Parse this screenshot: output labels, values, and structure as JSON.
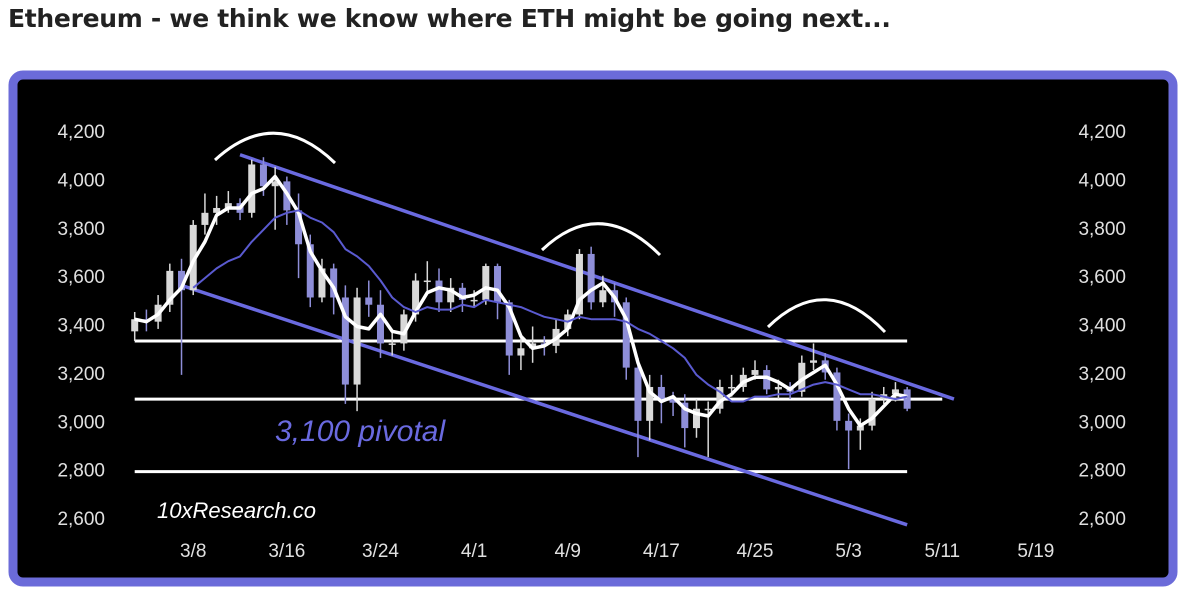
{
  "chart_data": {
    "type": "candlestick",
    "title": "Ethereum - we think we know where ETH might be going next...",
    "annotations": [
      "3,100 pivotal",
      "10xResearch.co"
    ],
    "x": [
      "3/3",
      "3/4",
      "3/5",
      "3/6",
      "3/7",
      "3/8",
      "3/9",
      "3/10",
      "3/11",
      "3/12",
      "3/13",
      "3/14",
      "3/15",
      "3/16",
      "3/17",
      "3/18",
      "3/19",
      "3/20",
      "3/21",
      "3/22",
      "3/23",
      "3/24",
      "3/25",
      "3/26",
      "3/27",
      "3/28",
      "3/29",
      "3/30",
      "3/31",
      "4/1",
      "4/2",
      "4/3",
      "4/4",
      "4/5",
      "4/6",
      "4/7",
      "4/8",
      "4/9",
      "4/10",
      "4/11",
      "4/12",
      "4/13",
      "4/14",
      "4/15",
      "4/16",
      "4/17",
      "4/18",
      "4/19",
      "4/20",
      "4/21",
      "4/22",
      "4/23",
      "4/24",
      "4/25",
      "4/26",
      "4/27",
      "4/28",
      "4/29",
      "4/30",
      "5/1",
      "5/2",
      "5/3",
      "5/4",
      "5/5",
      "5/6",
      "5/7",
      "5/8"
    ],
    "open": [
      3380,
      3430,
      3420,
      3490,
      3630,
      3550,
      3820,
      3870,
      3890,
      3910,
      3870,
      4070,
      3980,
      4000,
      3880,
      3740,
      3520,
      3640,
      3520,
      3160,
      3520,
      3490,
      3330,
      3330,
      3450,
      3590,
      3590,
      3500,
      3560,
      3510,
      3510,
      3650,
      3500,
      3280,
      3310,
      3330,
      3320,
      3390,
      3450,
      3700,
      3500,
      3550,
      3500,
      3230,
      3010,
      3150,
      3100,
      3085,
      2980,
      3060,
      3060,
      3150,
      3150,
      3200,
      3220,
      3140,
      3150,
      3130,
      3250,
      3260,
      3210,
      3010,
      2970,
      2990,
      3100,
      3120,
      3140
    ],
    "high": [
      3460,
      3470,
      3530,
      3660,
      3680,
      3840,
      3950,
      3940,
      3960,
      3930,
      4090,
      4100,
      4060,
      4020,
      3950,
      3780,
      3680,
      3660,
      3570,
      3560,
      3590,
      3550,
      3380,
      3470,
      3620,
      3670,
      3640,
      3600,
      3580,
      3550,
      3660,
      3660,
      3510,
      3360,
      3400,
      3360,
      3430,
      3470,
      3720,
      3730,
      3610,
      3580,
      3520,
      3270,
      3200,
      3200,
      3130,
      3120,
      3100,
      3090,
      3180,
      3200,
      3230,
      3260,
      3240,
      3180,
      3170,
      3280,
      3330,
      3290,
      3230,
      3040,
      3020,
      3130,
      3150,
      3170,
      3150
    ],
    "low": [
      3340,
      3380,
      3390,
      3460,
      3200,
      3530,
      3780,
      3820,
      3870,
      3840,
      3850,
      3940,
      3800,
      3820,
      3600,
      3480,
      3500,
      3450,
      3080,
      3050,
      3440,
      3270,
      3280,
      3300,
      3420,
      3540,
      3460,
      3460,
      3460,
      3480,
      3490,
      3430,
      3200,
      3220,
      3250,
      3280,
      3290,
      3360,
      3430,
      3470,
      3480,
      3440,
      3180,
      2860,
      2930,
      3000,
      3030,
      2900,
      2940,
      2860,
      3040,
      3110,
      3130,
      3180,
      3120,
      3100,
      3100,
      3110,
      3220,
      3180,
      2970,
      2810,
      2890,
      2970,
      3080,
      3090,
      3050
    ],
    "close": [
      3430,
      3420,
      3490,
      3630,
      3550,
      3820,
      3870,
      3890,
      3910,
      3870,
      4070,
      3980,
      4000,
      3880,
      3740,
      3520,
      3640,
      3520,
      3160,
      3520,
      3490,
      3330,
      3330,
      3450,
      3590,
      3590,
      3500,
      3560,
      3510,
      3510,
      3650,
      3500,
      3280,
      3310,
      3330,
      3320,
      3390,
      3450,
      3700,
      3500,
      3550,
      3500,
      3230,
      3010,
      3150,
      3100,
      3085,
      2980,
      3060,
      3060,
      3150,
      3150,
      3200,
      3220,
      3140,
      3150,
      3130,
      3250,
      3260,
      3210,
      3010,
      2970,
      2990,
      3100,
      3120,
      3140,
      3060
    ],
    "up_color": "#d9d9d9",
    "down_color": "#8e8ed8",
    "series": [
      {
        "color": "#ffffff",
        "values": [
          3430,
          3420,
          3450,
          3510,
          3560,
          3670,
          3750,
          3860,
          3890,
          3890,
          3950,
          3970,
          4020,
          3950,
          3870,
          3710,
          3630,
          3560,
          3440,
          3400,
          3390,
          3450,
          3380,
          3370,
          3460,
          3540,
          3560,
          3550,
          3520,
          3530,
          3560,
          3550,
          3480,
          3360,
          3310,
          3320,
          3350,
          3390,
          3510,
          3550,
          3580,
          3520,
          3430,
          3250,
          3130,
          3090,
          3110,
          3060,
          3040,
          3030,
          3090,
          3120,
          3170,
          3190,
          3190,
          3170,
          3140,
          3180,
          3210,
          3240,
          3160,
          3060,
          2990,
          3020,
          3070,
          3120,
          3110
        ]
      },
      {
        "color": "#5a5ad0",
        "values": [
          null,
          null,
          null,
          null,
          null,
          3560,
          3600,
          3640,
          3670,
          3690,
          3750,
          3800,
          3850,
          3870,
          3880,
          3850,
          3830,
          3790,
          3720,
          3690,
          3650,
          3590,
          3520,
          3480,
          3460,
          3480,
          3470,
          3470,
          3490,
          3480,
          3510,
          3500,
          3490,
          3480,
          3460,
          3440,
          3430,
          3420,
          3440,
          3430,
          3430,
          3430,
          3420,
          3390,
          3370,
          3340,
          3310,
          3270,
          3200,
          3160,
          3130,
          3090,
          3090,
          3110,
          3110,
          3120,
          3120,
          3140,
          3160,
          3170,
          3160,
          3140,
          3120,
          3120,
          3110,
          3100,
          3110
        ]
      }
    ],
    "trendlines": [
      {
        "color": "#6a6ae0",
        "x": [
          "3/12",
          "5/12"
        ],
        "values": [
          4110,
          3100
        ]
      },
      {
        "color": "#6a6ae0",
        "x": [
          "3/7",
          "5/8"
        ],
        "values": [
          3570,
          2580
        ]
      }
    ],
    "levels": [
      {
        "color": "#ffffff",
        "value": 3340,
        "x": [
          "3/3",
          "5/8"
        ]
      },
      {
        "color": "#ffffff",
        "value": 3100,
        "x": [
          "3/3",
          "5/11"
        ]
      },
      {
        "color": "#ffffff",
        "value": 2800,
        "x": [
          "3/3",
          "5/8"
        ]
      }
    ],
    "xlim": [
      "3/2",
      "5/22"
    ],
    "xticks": [
      "3/8",
      "3/16",
      "3/24",
      "4/1",
      "4/9",
      "4/17",
      "4/25",
      "5/3",
      "5/11",
      "5/19"
    ],
    "ylim": [
      2600,
      4200
    ],
    "yticks": [
      {
        "value": 2600,
        "label": "2,600"
      },
      {
        "value": 2800,
        "label": "2,800"
      },
      {
        "value": 3000,
        "label": "3,000"
      },
      {
        "value": 3200,
        "label": "3,200"
      },
      {
        "value": 3400,
        "label": "3,400"
      },
      {
        "value": 3600,
        "label": "3,600"
      },
      {
        "value": 3800,
        "label": "3,800"
      },
      {
        "value": 4000,
        "label": "4,000"
      },
      {
        "value": 4200,
        "label": "4,200"
      }
    ],
    "frame_color": "#6b6bd9"
  }
}
